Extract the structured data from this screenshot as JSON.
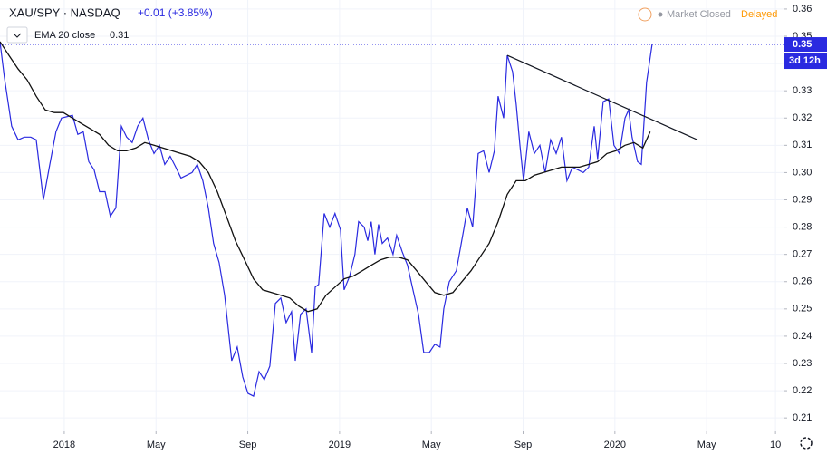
{
  "chart_data": {
    "type": "line",
    "title": "XAU/SPY · NASDAQ",
    "change": "+0.01 (+3.85%)",
    "status": "Market Closed",
    "delay": "Delayed",
    "countdown": "3d 12h",
    "grid": true,
    "xlim": [
      -2.8,
      31.35
    ],
    "ylim": [
      0.2054,
      0.3633
    ],
    "xticks": [
      {
        "value": 0,
        "label": "2018"
      },
      {
        "value": 4,
        "label": "May"
      },
      {
        "value": 8,
        "label": "Sep"
      },
      {
        "value": 12,
        "label": "2019"
      },
      {
        "value": 16,
        "label": "May"
      },
      {
        "value": 20,
        "label": "Sep"
      },
      {
        "value": 24,
        "label": "2020"
      },
      {
        "value": 28,
        "label": "May"
      },
      {
        "value": 31,
        "label": "10"
      }
    ],
    "yticks": [
      0.36,
      0.35,
      0.34,
      0.33,
      0.32,
      0.31,
      {
        "value": 0.3,
        "label": "0.30"
      },
      0.29,
      0.28,
      0.27,
      0.26,
      0.25,
      0.24,
      0.23,
      0.22,
      0.21
    ],
    "series": [
      {
        "color": "#2a2ae0",
        "last_label": "0.35",
        "x": [
          -2.8,
          -2.61,
          -2.29,
          -2.01,
          -1.74,
          -1.46,
          -1.22,
          -0.91,
          -0.63,
          -0.36,
          -0.12,
          0.36,
          0.59,
          0.83,
          1.07,
          1.3,
          1.54,
          1.78,
          2.01,
          2.25,
          2.49,
          2.72,
          2.96,
          3.2,
          3.43,
          3.67,
          3.91,
          4.15,
          4.38,
          4.62,
          4.86,
          5.09,
          5.57,
          5.8,
          6.04,
          6.28,
          6.51,
          6.75,
          6.99,
          7.3,
          7.54,
          7.78,
          8.01,
          8.25,
          8.49,
          8.72,
          8.96,
          9.2,
          9.44,
          9.67,
          9.91,
          10.07,
          10.3,
          10.54,
          10.78,
          10.94,
          11.09,
          11.33,
          11.57,
          11.8,
          12.04,
          12.2,
          12.44,
          12.67,
          12.83,
          13.07,
          13.23,
          13.38,
          13.54,
          13.7,
          13.86,
          14.09,
          14.33,
          14.49,
          14.73,
          14.96,
          15.2,
          15.44,
          15.67,
          15.91,
          16.15,
          16.38,
          16.54,
          16.78,
          17.09,
          17.41,
          17.57,
          17.8,
          18.04,
          18.28,
          18.52,
          18.75,
          18.91,
          19.15,
          19.31,
          19.54,
          19.7,
          19.86,
          20.02,
          20.25,
          20.49,
          20.73,
          20.96,
          21.2,
          21.44,
          21.67,
          21.91,
          22.15,
          22.62,
          22.86,
          23.1,
          23.25,
          23.49,
          23.73,
          23.96,
          24.2,
          24.44,
          24.6,
          24.75,
          24.99,
          25.15,
          25.38,
          25.62
        ],
        "values": [
          0.348,
          0.335,
          0.317,
          0.312,
          0.313,
          0.313,
          0.312,
          0.29,
          0.303,
          0.315,
          0.32,
          0.321,
          0.314,
          0.315,
          0.304,
          0.301,
          0.293,
          0.293,
          0.284,
          0.287,
          0.317,
          0.313,
          0.311,
          0.317,
          0.32,
          0.312,
          0.307,
          0.31,
          0.303,
          0.306,
          0.302,
          0.298,
          0.3,
          0.303,
          0.297,
          0.287,
          0.274,
          0.267,
          0.255,
          0.231,
          0.236,
          0.225,
          0.219,
          0.218,
          0.227,
          0.224,
          0.229,
          0.252,
          0.254,
          0.245,
          0.249,
          0.231,
          0.248,
          0.25,
          0.234,
          0.258,
          0.259,
          0.285,
          0.28,
          0.285,
          0.279,
          0.257,
          0.262,
          0.27,
          0.282,
          0.28,
          0.275,
          0.282,
          0.27,
          0.281,
          0.274,
          0.276,
          0.27,
          0.277,
          0.271,
          0.266,
          0.257,
          0.248,
          0.234,
          0.234,
          0.237,
          0.236,
          0.25,
          0.26,
          0.264,
          0.279,
          0.287,
          0.28,
          0.307,
          0.308,
          0.3,
          0.308,
          0.328,
          0.32,
          0.343,
          0.337,
          0.325,
          0.31,
          0.297,
          0.315,
          0.307,
          0.31,
          0.3,
          0.312,
          0.307,
          0.313,
          0.297,
          0.302,
          0.3,
          0.302,
          0.317,
          0.305,
          0.326,
          0.327,
          0.31,
          0.307,
          0.32,
          0.323,
          0.313,
          0.304,
          0.303,
          0.333,
          0.347
        ]
      },
      {
        "name": "EMA 20 close",
        "value_label": "0.31",
        "color": "#111111",
        "x": [
          -2.8,
          -2.41,
          -2.01,
          -1.62,
          -1.22,
          -0.83,
          -0.43,
          -0.04,
          0.36,
          0.75,
          1.15,
          1.54,
          1.93,
          2.33,
          2.72,
          3.12,
          3.51,
          3.91,
          4.3,
          4.7,
          5.09,
          5.49,
          5.88,
          6.28,
          6.67,
          7.07,
          7.46,
          7.86,
          8.25,
          8.65,
          9.04,
          9.44,
          9.83,
          10.23,
          10.62,
          11.02,
          11.41,
          11.8,
          12.2,
          12.59,
          12.99,
          13.38,
          13.78,
          14.17,
          14.57,
          14.96,
          15.36,
          15.75,
          16.15,
          16.54,
          16.94,
          17.33,
          17.73,
          18.12,
          18.52,
          18.91,
          19.31,
          19.7,
          20.1,
          20.49,
          20.88,
          21.28,
          21.67,
          22.07,
          22.46,
          22.86,
          23.25,
          23.65,
          24.04,
          24.44,
          24.83,
          25.22,
          25.54
        ],
        "values": [
          0.348,
          0.343,
          0.338,
          0.334,
          0.328,
          0.323,
          0.322,
          0.322,
          0.32,
          0.318,
          0.316,
          0.314,
          0.31,
          0.308,
          0.308,
          0.309,
          0.311,
          0.31,
          0.309,
          0.308,
          0.307,
          0.306,
          0.304,
          0.3,
          0.293,
          0.284,
          0.275,
          0.268,
          0.261,
          0.257,
          0.256,
          0.255,
          0.254,
          0.251,
          0.249,
          0.25,
          0.255,
          0.258,
          0.261,
          0.262,
          0.264,
          0.266,
          0.268,
          0.269,
          0.269,
          0.268,
          0.264,
          0.26,
          0.256,
          0.255,
          0.256,
          0.26,
          0.264,
          0.269,
          0.274,
          0.282,
          0.292,
          0.297,
          0.297,
          0.299,
          0.3,
          0.301,
          0.302,
          0.302,
          0.302,
          0.303,
          0.304,
          0.307,
          0.308,
          0.31,
          0.311,
          0.309,
          0.315
        ]
      }
    ],
    "trendline": {
      "x": [
        19.31,
        27.6
      ],
      "y": [
        0.343,
        0.312
      ]
    }
  }
}
